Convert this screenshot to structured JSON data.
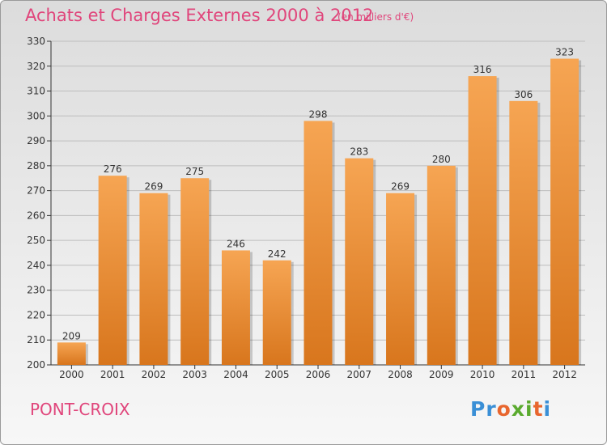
{
  "header": {
    "title": "Achats et Charges Externes 2000 à 2012",
    "subtitle": "(en milliers d'€)"
  },
  "footer": {
    "commune": "PONT-CROIX",
    "logo_text": "Proxiti",
    "logo_colors": [
      "#3a8fd6",
      "#3a8fd6",
      "#e8662e",
      "#5aaa2e",
      "#5aaa2e",
      "#e8662e",
      "#3a8fd6"
    ]
  },
  "colors": {
    "bar_light": "#f6a553",
    "bar_dark": "#d8761d",
    "text": "#e0457b",
    "axis": "#333333",
    "grid": "#bdbdbd"
  },
  "chart_data": {
    "type": "bar",
    "title": "Achats et Charges Externes 2000 à 2012",
    "subtitle": "(en milliers d'€)",
    "categories": [
      "2000",
      "2001",
      "2002",
      "2003",
      "2004",
      "2005",
      "2006",
      "2007",
      "2008",
      "2009",
      "2010",
      "2011",
      "2012"
    ],
    "values": [
      209,
      276,
      269,
      275,
      246,
      242,
      298,
      283,
      269,
      280,
      316,
      306,
      323
    ],
    "xlabel": "",
    "ylabel": "",
    "ylim": [
      200,
      330
    ],
    "yticks": [
      200,
      210,
      220,
      230,
      240,
      250,
      260,
      270,
      280,
      290,
      300,
      310,
      320,
      330
    ],
    "grid": true,
    "data_labels": true
  }
}
